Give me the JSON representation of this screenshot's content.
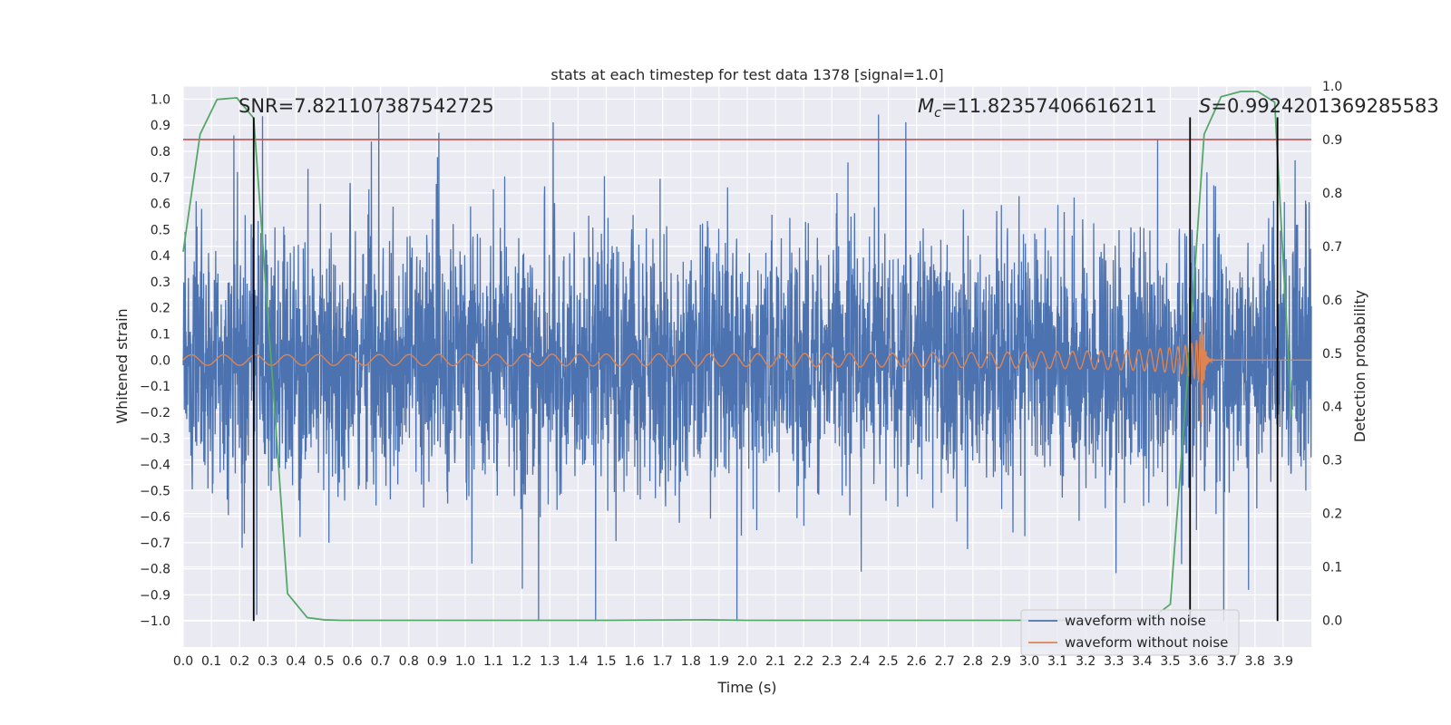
{
  "chart_data": {
    "type": "line",
    "title": "stats at each timestep for test data 1378 [signal=1.0]",
    "xlabel": "Time (s)",
    "ylabel_left": "Whitened strain",
    "ylabel_right": "Detection probability",
    "xlim": [
      0.0,
      4.0
    ],
    "ylim_left": [
      -1.1,
      1.05
    ],
    "ylim_right": [
      -0.05,
      1.0
    ],
    "x_ticks": [
      "0.0",
      "0.1",
      "0.2",
      "0.3",
      "0.4",
      "0.5",
      "0.6",
      "0.7",
      "0.8",
      "0.9",
      "1.0",
      "1.1",
      "1.2",
      "1.3",
      "1.4",
      "1.5",
      "1.6",
      "1.7",
      "1.8",
      "1.9",
      "2.0",
      "2.1",
      "2.2",
      "2.3",
      "2.4",
      "2.5",
      "2.6",
      "2.7",
      "2.8",
      "2.9",
      "3.0",
      "3.1",
      "3.2",
      "3.3",
      "3.4",
      "3.5",
      "3.6",
      "3.7",
      "3.8",
      "3.9"
    ],
    "y_ticks_left": [
      "1.0",
      "0.9",
      "0.8",
      "0.7",
      "0.6",
      "0.5",
      "0.4",
      "0.3",
      "0.2",
      "0.1",
      "0.0",
      "−0.1",
      "−0.2",
      "−0.3",
      "−0.4",
      "−0.5",
      "−0.6",
      "−0.7",
      "−0.8",
      "−0.9",
      "−1.0"
    ],
    "y_ticks_right": [
      "1.0",
      "0.9",
      "0.8",
      "0.7",
      "0.6",
      "0.5",
      "0.4",
      "0.3",
      "0.2",
      "0.1",
      "0.0"
    ],
    "annotations": {
      "snr": "SNR=7.821107387542725",
      "mc_symbol": "M",
      "mc_sub": "c",
      "mc_value": "=11.82357406616211",
      "s_symbol": "S",
      "s_value": "=0.9924201369285583"
    },
    "threshold_probability": 0.9,
    "vertical_markers_s": [
      0.25,
      3.57,
      3.88
    ],
    "series": [
      {
        "name": "waveform with noise",
        "color": "#4c72b0",
        "axis": "left",
        "description": "noisy whitened strain, amplitude roughly -1.0 to 0.95"
      },
      {
        "name": "waveform without noise",
        "color": "#dd8452",
        "axis": "left",
        "description": "chirp signal, amplitude ~0.02 growing to ~0.25 at merger near 3.6 s"
      },
      {
        "name": "detection probability",
        "color": "#55a868",
        "axis": "right",
        "x": [
          0.0,
          0.06,
          0.12,
          0.19,
          0.25,
          0.31,
          0.37,
          0.44,
          0.5,
          0.56,
          0.62,
          1.0,
          1.5,
          1.85,
          2.0,
          2.5,
          3.0,
          3.1,
          3.2,
          3.3,
          3.4,
          3.45,
          3.5,
          3.56,
          3.62,
          3.68,
          3.75,
          3.81,
          3.87,
          3.93
        ],
        "values": [
          0.69,
          0.91,
          0.975,
          0.978,
          0.94,
          0.5,
          0.05,
          0.005,
          0.001,
          0.0,
          0.0,
          0.0,
          0.0,
          0.001,
          0.0,
          0.0,
          0.0,
          0.0,
          0.0,
          0.0,
          0.0,
          0.01,
          0.03,
          0.45,
          0.91,
          0.98,
          0.99,
          0.99,
          0.97,
          0.38
        ]
      }
    ],
    "legend": {
      "location": "lower-right",
      "entries": [
        {
          "label": "waveform with noise",
          "color": "#4c72b0"
        },
        {
          "label": "waveform without noise",
          "color": "#dd8452"
        }
      ]
    },
    "colors": {
      "background": "#eaeaf2",
      "grid": "#ffffff",
      "threshold": "#c44e52",
      "marker": "#000000"
    }
  }
}
